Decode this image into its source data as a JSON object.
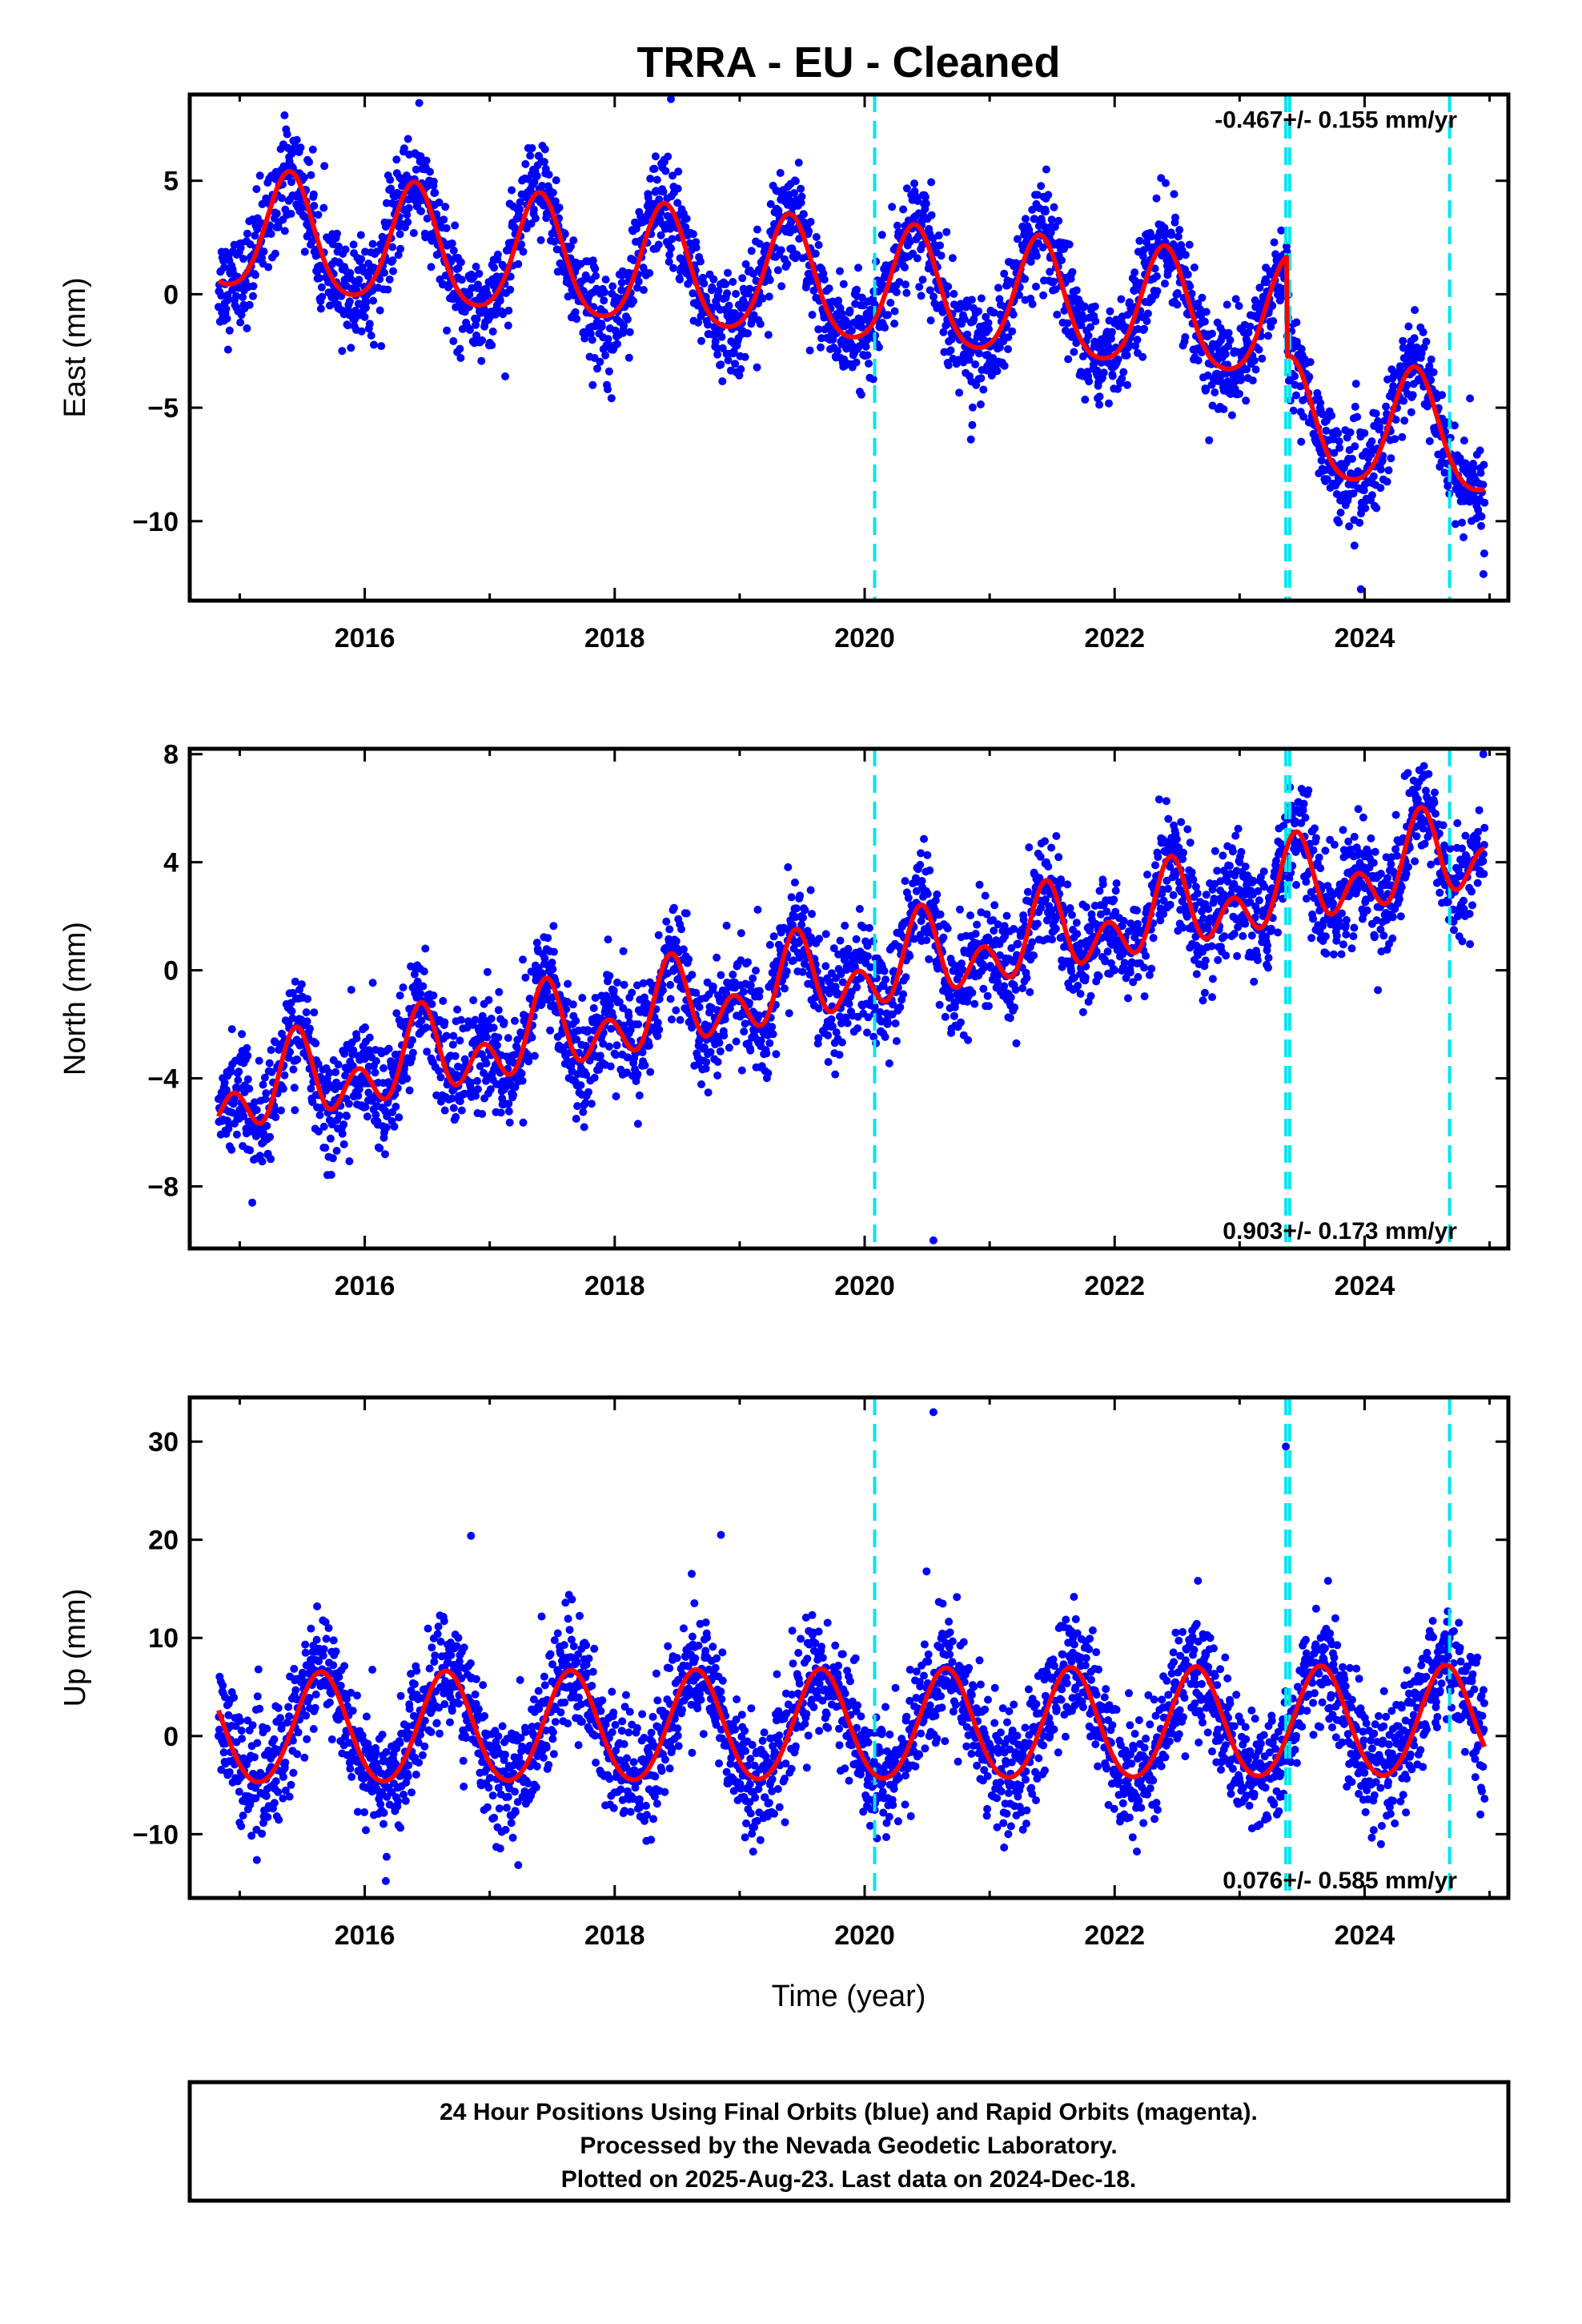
{
  "title": "TRRA  - EU - Cleaned",
  "colors": {
    "final_orbits": "#0000ff",
    "model_fit": "#ff0000",
    "equipment_change": "#00e5ee",
    "frame": "#000000"
  },
  "chart_data": [
    {
      "type": "scatter",
      "component": "East",
      "ylabel": "East (mm)",
      "xlabel": "",
      "xlim": [
        2014.6,
        2025.15
      ],
      "ylim": [
        -13.5,
        8.8
      ],
      "yticks": [
        -10,
        -5,
        0,
        5
      ],
      "ytick_labels": [
        "−10",
        "−5",
        "0",
        "5"
      ],
      "xticks": [
        2016,
        2018,
        2020,
        2022,
        2024
      ],
      "xtick_labels": [
        "2016",
        "2018",
        "2020",
        "2022",
        "2024"
      ],
      "rate_label": "-0.467+/- 0.155 mm/yr",
      "rate_label_position": "top-right",
      "trend": {
        "slope": -0.467,
        "intercept_2015": 2.6,
        "offsets": [
          {
            "t": 2023.38,
            "dy": -4.4
          }
        ]
      },
      "seasonal": {
        "annual_amp": 2.6,
        "annual_peak": 2015.4,
        "semiannual_amp": 0.4
      },
      "noise_sd": 1.1,
      "outliers": [
        {
          "x": 2018.45,
          "y": 8.6
        },
        {
          "x": 2023.97,
          "y": -13.0
        },
        {
          "x": 2020.85,
          "y": -6.4
        }
      ],
      "series": [
        {
          "name": "Final Orbits",
          "kind": "points",
          "color": "#0000ff"
        },
        {
          "name": "Model fit",
          "kind": "line",
          "color": "#ff0000"
        }
      ]
    },
    {
      "type": "scatter",
      "component": "North",
      "ylabel": "North (mm)",
      "xlabel": "",
      "xlim": [
        2014.6,
        2025.15
      ],
      "ylim": [
        -10.3,
        8.2
      ],
      "yticks": [
        -8,
        -4,
        0,
        4,
        8
      ],
      "ytick_labels": [
        "−8",
        "−4",
        "0",
        "4",
        "8"
      ],
      "xticks": [
        2016,
        2018,
        2020,
        2022,
        2024
      ],
      "xtick_labels": [
        "2016",
        "2018",
        "2020",
        "2022",
        "2024"
      ],
      "rate_label": "0.903+/- 0.173 mm/yr",
      "rate_label_position": "bottom-right",
      "trend": {
        "slope": 0.903,
        "intercept_2015": -4.6,
        "offsets": []
      },
      "seasonal": {
        "annual_amp": 1.0,
        "annual_peak": 2015.45,
        "semiannual_amp": 1.1
      },
      "noise_sd": 1.0,
      "outliers": [
        {
          "x": 2020.55,
          "y": -10.0
        },
        {
          "x": 2024.95,
          "y": 8.0
        },
        {
          "x": 2015.1,
          "y": -8.6
        }
      ],
      "series": [
        {
          "name": "Final Orbits",
          "kind": "points",
          "color": "#0000ff"
        },
        {
          "name": "Model fit",
          "kind": "line",
          "color": "#ff0000"
        }
      ]
    },
    {
      "type": "scatter",
      "component": "Up",
      "ylabel": "Up (mm)",
      "xlabel": "Time (year)",
      "xlim": [
        2014.6,
        2025.15
      ],
      "ylim": [
        -16.5,
        34.5
      ],
      "yticks": [
        -10,
        0,
        10,
        20,
        30
      ],
      "ytick_labels": [
        "−10",
        "0",
        "10",
        "20",
        "30"
      ],
      "xticks": [
        2016,
        2018,
        2020,
        2022,
        2024
      ],
      "xtick_labels": [
        "2016",
        "2018",
        "2020",
        "2022",
        "2024"
      ],
      "rate_label": "0.076+/- 0.585 mm/yr",
      "rate_label_position": "bottom-right",
      "trend": {
        "slope": 0.076,
        "intercept_2015": 0.5,
        "offsets": []
      },
      "seasonal": {
        "annual_amp": 5.6,
        "annual_peak": 2015.65,
        "semiannual_amp": 0.4
      },
      "noise_sd": 3.0,
      "outliers": [
        {
          "x": 2020.55,
          "y": 33.0
        },
        {
          "x": 2023.37,
          "y": 29.5
        },
        {
          "x": 2018.85,
          "y": 20.5
        },
        {
          "x": 2016.85,
          "y": 20.4
        }
      ],
      "series": [
        {
          "name": "Final Orbits",
          "kind": "points",
          "color": "#0000ff"
        },
        {
          "name": "Model fit",
          "kind": "line",
          "color": "#ff0000"
        }
      ]
    }
  ],
  "equipment_changes": [
    2020.08,
    2023.37,
    2023.4,
    2024.68
  ],
  "data_span": {
    "start": 2014.83,
    "end": 2024.96
  },
  "footer": {
    "line1": "24 Hour Positions Using Final Orbits (blue) and Rapid Orbits (magenta).",
    "line2": "Processed by the Nevada Geodetic Laboratory.",
    "line3": "Plotted on 2025-Aug-23. Last data on 2024-Dec-18."
  }
}
